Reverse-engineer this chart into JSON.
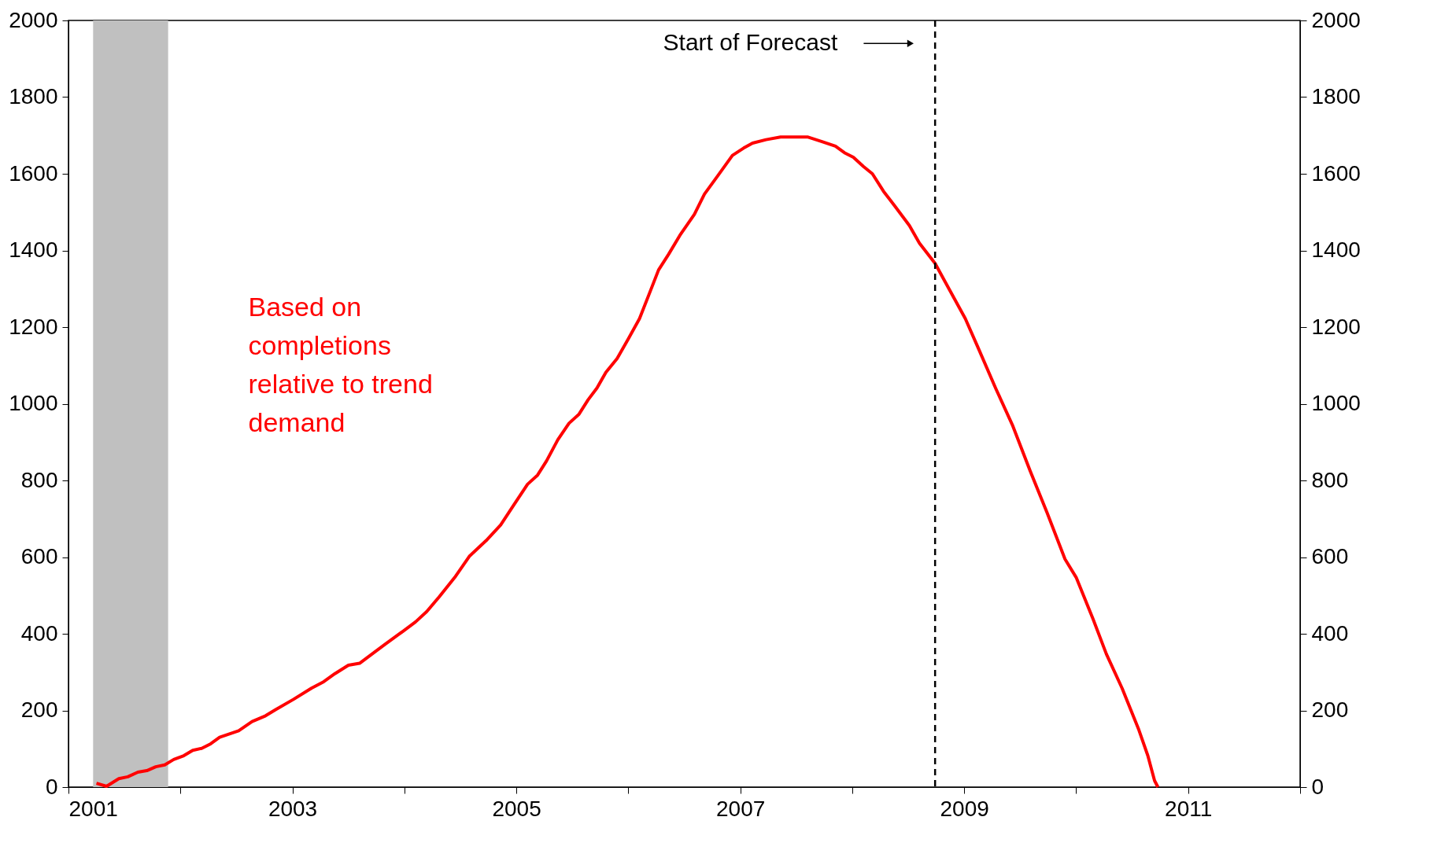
{
  "chart_data": {
    "type": "line",
    "x": [
      2001.25,
      2001.34,
      2001.45,
      2001.53,
      2001.62,
      2001.7,
      2001.78,
      2001.86,
      2001.94,
      2002.03,
      2002.11,
      2002.19,
      2002.27,
      2002.35,
      2002.52,
      2002.64,
      2002.76,
      2002.85,
      2003.01,
      2003.17,
      2003.28,
      2003.38,
      2003.5,
      2003.6,
      2003.71,
      2003.83,
      2003.99,
      2004.1,
      2004.2,
      2004.31,
      2004.45,
      2004.58,
      2004.73,
      2004.86,
      2004.98,
      2005.1,
      2005.19,
      2005.27,
      2005.37,
      2005.47,
      2005.56,
      2005.64,
      2005.72,
      2005.8,
      2005.9,
      2006.0,
      2006.1,
      2006.19,
      2006.27,
      2006.36,
      2006.46,
      2006.59,
      2006.68,
      2006.8,
      2006.93,
      2007.03,
      2007.11,
      2007.23,
      2007.36,
      2007.6,
      2007.73,
      2007.85,
      2007.93,
      2008.01,
      2008.1,
      2008.18,
      2008.28,
      2008.38,
      2008.51,
      2008.6,
      2008.74,
      2008.83,
      2009.01,
      2009.12,
      2009.28,
      2009.43,
      2009.59,
      2009.74,
      2009.9,
      2010.0,
      2010.15,
      2010.27,
      2010.41,
      2010.56,
      2010.64,
      2010.7,
      2010.73
    ],
    "series": [
      {
        "color": "#ff0000",
        "values": [
          10,
          2,
          22,
          27,
          39,
          43,
          53,
          58,
          72,
          82,
          96,
          101,
          113,
          130,
          147,
          171,
          186,
          202,
          229,
          258,
          275,
          296,
          318,
          323,
          347,
          373,
          407,
          431,
          458,
          496,
          547,
          602,
          643,
          684,
          737,
          790,
          814,
          851,
          906,
          949,
          973,
          1010,
          1041,
          1082,
          1118,
          1169,
          1222,
          1289,
          1349,
          1390,
          1439,
          1494,
          1547,
          1595,
          1648,
          1667,
          1680,
          1689,
          1696,
          1696,
          1684,
          1672,
          1655,
          1643,
          1619,
          1600,
          1554,
          1516,
          1465,
          1419,
          1366,
          1318,
          1222,
          1149,
          1041,
          945,
          824,
          716,
          595,
          547,
          439,
          347,
          258,
          149,
          82,
          17,
          0
        ]
      }
    ],
    "xlim": [
      2001,
      2012
    ],
    "xticks": [
      2001,
      {
        "value": 2002,
        "label": null
      },
      2003,
      {
        "value": 2004,
        "label": null
      },
      2005,
      {
        "value": 2006,
        "label": null
      },
      2007,
      {
        "value": 2008,
        "label": null
      },
      2009,
      {
        "value": 2010,
        "label": null
      },
      2011,
      {
        "value": 2012,
        "label": null
      }
    ],
    "ylim": [
      0,
      2000
    ],
    "yticks": [
      0,
      200,
      400,
      600,
      800,
      1000,
      1200,
      1400,
      1600,
      1800,
      2000
    ],
    "y2lim": [
      0,
      2000
    ],
    "y2ticks": [
      0,
      200,
      400,
      600,
      800,
      1000,
      1200,
      1400,
      1600,
      1800,
      2000
    ],
    "bands": [
      {
        "axis": "x",
        "from": 2001.22,
        "to": 2001.89,
        "color": "#c0c0c0"
      }
    ],
    "ref_lines": [
      {
        "axis": "x",
        "value": 2008.74,
        "color": "#000000",
        "line_style": "dashed"
      }
    ],
    "annotations": [
      "Start of Forecast",
      "Based on completions relative to trend demand"
    ],
    "line_style": "solid",
    "marker": "none"
  }
}
